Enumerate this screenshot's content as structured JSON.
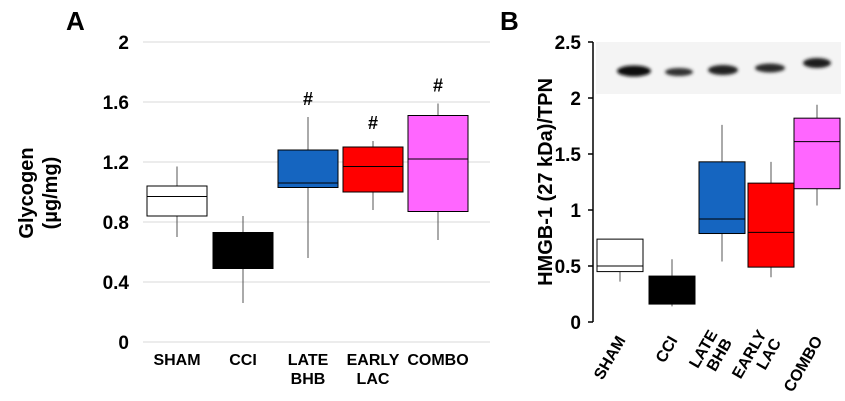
{
  "chart_data": [
    {
      "panel": "A",
      "type": "box",
      "ylabel_line1": "Glycogen",
      "ylabel_line2": "(µg/mg)",
      "ylim": [
        0,
        2
      ],
      "yticks": [
        "0",
        "0.4",
        "0.8",
        "1.2",
        "1.6",
        "2"
      ],
      "grid": true,
      "categories": [
        {
          "label": [
            "SHAM"
          ],
          "color": "#ffffff",
          "min": 0.7,
          "q1": 0.84,
          "median": 0.97,
          "q3": 1.04,
          "max": 1.17,
          "annotation": ""
        },
        {
          "label": [
            "CCI"
          ],
          "color": "#000000",
          "min": 0.26,
          "q1": 0.49,
          "median": 0.6,
          "q3": 0.73,
          "max": 0.84,
          "annotation": ""
        },
        {
          "label": [
            "LATE",
            "BHB"
          ],
          "color": "#1565c0",
          "min": 0.56,
          "q1": 1.03,
          "median": 1.06,
          "q3": 1.28,
          "max": 1.5,
          "annotation": "#"
        },
        {
          "label": [
            "EARLY",
            "LAC"
          ],
          "color": "#ff0000",
          "min": 0.88,
          "q1": 1.0,
          "median": 1.17,
          "q3": 1.3,
          "max": 1.34,
          "annotation": "#"
        },
        {
          "label": [
            "COMBO"
          ],
          "color": "#ff66ff",
          "min": 0.68,
          "q1": 0.87,
          "median": 1.22,
          "q3": 1.51,
          "max": 1.59,
          "annotation": "#"
        }
      ]
    },
    {
      "panel": "B",
      "type": "box",
      "ylabel": "HMGB-1 (27 kDa)/TPN",
      "ylim": [
        0,
        2.5
      ],
      "yticks": [
        "0",
        "0.5",
        "1",
        "1.5",
        "2",
        "2.5"
      ],
      "grid": false,
      "western_blot_inset": true,
      "categories": [
        {
          "label": "SHAM",
          "color": "#ffffff",
          "min": 0.36,
          "q1": 0.45,
          "median": 0.5,
          "q3": 0.74,
          "max": 0.74
        },
        {
          "label": "CCI",
          "color": "#000000",
          "min": 0.14,
          "q1": 0.16,
          "median": 0.3,
          "q3": 0.41,
          "max": 0.56
        },
        {
          "label": "LATE BHB",
          "color": "#1565c0",
          "min": 0.54,
          "q1": 0.79,
          "median": 0.92,
          "q3": 1.43,
          "max": 1.76
        },
        {
          "label": "EARLY LAC",
          "color": "#ff0000",
          "min": 0.4,
          "q1": 0.49,
          "median": 0.8,
          "q3": 1.24,
          "max": 1.43
        },
        {
          "label": "COMBO",
          "color": "#ff66ff",
          "min": 1.04,
          "q1": 1.19,
          "median": 1.61,
          "q3": 1.82,
          "max": 1.94
        }
      ]
    }
  ]
}
